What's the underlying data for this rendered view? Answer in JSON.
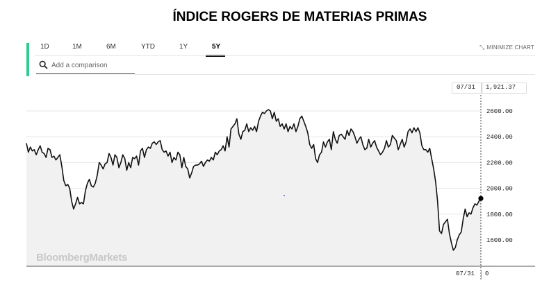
{
  "title": "ÍNDICE ROGERS DE MATERIAS PRIMAS",
  "tabs": [
    {
      "label": "1D",
      "active": false
    },
    {
      "label": "1M",
      "active": false
    },
    {
      "label": "6M",
      "active": false
    },
    {
      "label": "YTD",
      "active": false
    },
    {
      "label": "1Y",
      "active": false
    },
    {
      "label": "5Y",
      "active": true
    }
  ],
  "minimize_label": "MINIMIZE CHART",
  "compare": {
    "placeholder": "Add a comparison"
  },
  "crosshair": {
    "date": "07/31",
    "value": "1,921.37",
    "bottom_date": "07/31",
    "bottom_value": "0"
  },
  "watermark": "BloombergMarkets",
  "colors": {
    "accent": "#2ecc8f",
    "line": "#111111",
    "fill": "#f1f1f1"
  },
  "chart_data": {
    "type": "area",
    "title": "ÍNDICE ROGERS DE MATERIAS PRIMAS",
    "xlabel": "",
    "ylabel": "",
    "ylim": [
      1420,
      2700
    ],
    "y_ticks": [
      "2600.00",
      "2400.00",
      "2200.00",
      "2000.00",
      "1800.00",
      "1600.00"
    ],
    "y_tick_values": [
      2600,
      2400,
      2200,
      2000,
      1800,
      1600
    ],
    "range": "5Y",
    "last_value": 1921.37,
    "values": [
      2350,
      2280,
      2320,
      2290,
      2300,
      2260,
      2300,
      2330,
      2280,
      2270,
      2240,
      2310,
      2300,
      2240,
      2250,
      2220,
      2240,
      2260,
      2170,
      2060,
      2020,
      2030,
      2000,
      1900,
      1840,
      1880,
      1930,
      1880,
      1890,
      1880,
      1980,
      2040,
      2070,
      2020,
      2010,
      2040,
      2100,
      2200,
      2180,
      2150,
      2190,
      2200,
      2270,
      2240,
      2180,
      2260,
      2240,
      2160,
      2200,
      2260,
      2230,
      2140,
      2200,
      2160,
      2240,
      2230,
      2250,
      2180,
      2290,
      2310,
      2240,
      2300,
      2320,
      2310,
      2350,
      2360,
      2340,
      2360,
      2370,
      2300,
      2280,
      2290,
      2250,
      2280,
      2200,
      2240,
      2220,
      2280,
      2260,
      2160,
      2240,
      2170,
      2150,
      2080,
      2120,
      2170,
      2180,
      2180,
      2190,
      2210,
      2170,
      2200,
      2220,
      2210,
      2240,
      2220,
      2280,
      2260,
      2290,
      2300,
      2330,
      2290,
      2400,
      2320,
      2460,
      2480,
      2500,
      2540,
      2420,
      2380,
      2440,
      2450,
      2500,
      2440,
      2470,
      2450,
      2480,
      2440,
      2520,
      2560,
      2590,
      2580,
      2600,
      2610,
      2600,
      2540,
      2590,
      2520,
      2540,
      2480,
      2500,
      2460,
      2500,
      2440,
      2480,
      2460,
      2500,
      2440,
      2480,
      2540,
      2560,
      2520,
      2480,
      2430,
      2340,
      2310,
      2340,
      2230,
      2200,
      2260,
      2280,
      2360,
      2320,
      2360,
      2380,
      2300,
      2440,
      2380,
      2350,
      2410,
      2420,
      2400,
      2380,
      2450,
      2410,
      2460,
      2440,
      2400,
      2350,
      2380,
      2400,
      2340,
      2300,
      2310,
      2380,
      2320,
      2350,
      2370,
      2320,
      2290,
      2260,
      2280,
      2310,
      2370,
      2320,
      2340,
      2410,
      2390,
      2370,
      2300,
      2340,
      2380,
      2320,
      2360,
      2440,
      2460,
      2430,
      2470,
      2440,
      2470,
      2430,
      2330,
      2300,
      2300,
      2280,
      2310,
      2230,
      2150,
      2050,
      1900,
      1670,
      1650,
      1720,
      1740,
      1760,
      1650,
      1580,
      1520,
      1540,
      1600,
      1640,
      1660,
      1760,
      1840,
      1780,
      1810,
      1800,
      1850,
      1880,
      1870,
      1900,
      1921.37
    ]
  }
}
